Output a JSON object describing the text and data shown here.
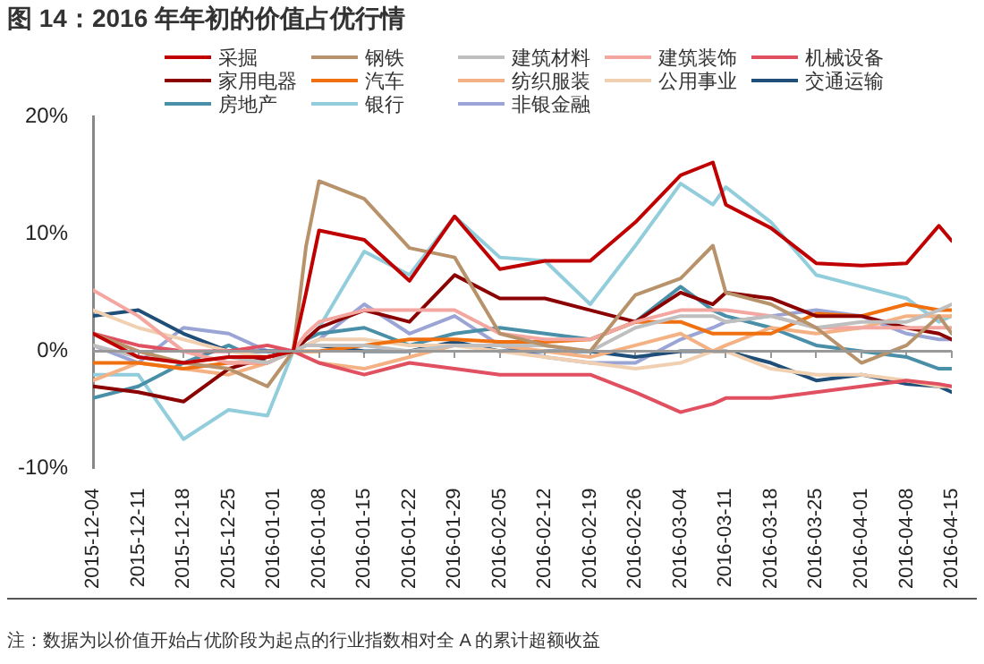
{
  "chart_data": {
    "type": "line",
    "title": "图 14：2016 年年初的价值占优行情",
    "annotations": [
      "注：数据为以价值开始占优阶段为起点的行业指数相对全 A 的累计超额收益"
    ],
    "x": [
      "2015-12-04",
      "2015-12-11",
      "2015-12-18",
      "2015-12-25",
      "2015-12-31",
      "2016-01-04",
      "2016-01-06",
      "2016-01-08",
      "2016-01-15",
      "2016-01-22",
      "2016-01-29",
      "2016-02-05",
      "2016-02-12",
      "2016-02-19",
      "2016-02-26",
      "2016-03-04",
      "2016-03-09",
      "2016-03-11",
      "2016-03-18",
      "2016-03-25",
      "2016-04-01",
      "2016-04-08",
      "2016-04-13",
      "2016-04-15"
    ],
    "xlim": [
      "2015-12-04",
      "2016-04-15"
    ],
    "xticks": [
      "2015-12-04",
      "2015-12-11",
      "2015-12-18",
      "2015-12-25",
      "2016-01-01",
      "2016-01-08",
      "2016-01-15",
      "2016-01-22",
      "2016-01-29",
      "2016-02-05",
      "2016-02-12",
      "2016-02-19",
      "2016-02-26",
      "2016-03-04",
      "2016-03-11",
      "2016-03-18",
      "2016-03-25",
      "2016-04-01",
      "2016-04-08",
      "2016-04-15"
    ],
    "ylim": [
      -10,
      20
    ],
    "yticks": [
      {
        "value": -10,
        "label": "-10%"
      },
      {
        "value": 0,
        "label": "0%"
      },
      {
        "value": 10,
        "label": "10%"
      },
      {
        "value": 20,
        "label": "20%"
      }
    ],
    "ref_lines": [
      {
        "axis": "y",
        "value": 0,
        "color": "#999999",
        "line_style": "solid"
      }
    ],
    "grid": false,
    "legend": "top",
    "marker": "none",
    "line_style": "solid",
    "series": [
      {
        "name": "采掘",
        "color": "#c00000",
        "values": [
          1.5,
          -0.5,
          -1,
          -0.5,
          -0.5,
          0,
          5,
          10.3,
          9.5,
          6,
          11.5,
          7,
          7.7,
          7.7,
          11,
          15,
          16.1,
          12.5,
          10.5,
          7.5,
          7.3,
          7.5,
          10.7,
          9.4
        ]
      },
      {
        "name": "钢铁",
        "color": "#b8926a",
        "values": [
          1.5,
          0,
          -1,
          -1.5,
          -3,
          0,
          9,
          14.5,
          13,
          8.8,
          8,
          1.5,
          0.5,
          0,
          4.8,
          6.2,
          9,
          5,
          4,
          2,
          -1,
          0.5,
          3,
          1.5
        ]
      },
      {
        "name": "建筑材料",
        "color": "#bfbfbf",
        "values": [
          0.5,
          -0.5,
          -1,
          -0.5,
          -1,
          0,
          0.5,
          0.5,
          0.5,
          0,
          0.5,
          0.5,
          0.5,
          0,
          2,
          3,
          3,
          2.5,
          3,
          2,
          2.5,
          2.5,
          3.5,
          4
        ]
      },
      {
        "name": "建筑装饰",
        "color": "#f4a6a0",
        "values": [
          5.2,
          3,
          0,
          -1,
          -1,
          0,
          1.5,
          2.5,
          3.5,
          3.5,
          3.5,
          1.5,
          1,
          1,
          2.5,
          3.5,
          3.5,
          3.5,
          3,
          2,
          2,
          2,
          2,
          2
        ]
      },
      {
        "name": "机械设备",
        "color": "#e05060",
        "values": [
          1.5,
          0.5,
          0,
          0,
          0.5,
          0,
          -0.5,
          -1,
          -2,
          -1,
          -1.5,
          -2,
          -2,
          -2,
          -3.5,
          -5.2,
          -4.5,
          -4,
          -4,
          -3.5,
          -3,
          -2.5,
          -2.8,
          -3
        ]
      },
      {
        "name": "家用电器",
        "color": "#8b0000",
        "values": [
          -3,
          -3.5,
          -4.3,
          -1.5,
          -0.5,
          0,
          1,
          2,
          3.5,
          2.5,
          6.5,
          4.5,
          4.5,
          3.5,
          2.5,
          5,
          4,
          5,
          4.5,
          3,
          3,
          2,
          1.5,
          1
        ]
      },
      {
        "name": "汽车",
        "color": "#f07010",
        "values": [
          -1,
          -1,
          -1.5,
          -1,
          -1,
          0,
          0,
          0,
          0.5,
          1,
          1,
          0.8,
          0.8,
          1,
          2.5,
          2.5,
          1.5,
          1.5,
          1.5,
          3.2,
          3,
          4,
          3.5,
          3.5
        ]
      },
      {
        "name": "纺织服装",
        "color": "#f4b183",
        "values": [
          -2.5,
          -1,
          -1.5,
          -2,
          -1,
          0,
          -0.5,
          -1,
          -1.5,
          -0.5,
          0.5,
          0.5,
          0,
          -0.5,
          0.5,
          1.5,
          0,
          0.5,
          2,
          1.5,
          2,
          3,
          3,
          3
        ]
      },
      {
        "name": "公用事业",
        "color": "#f0d0b0",
        "values": [
          3.5,
          2,
          1,
          0,
          -0.5,
          0,
          0.5,
          1,
          1,
          0.5,
          0.5,
          0,
          -0.5,
          -1,
          -1.5,
          -1,
          0,
          0,
          -1.5,
          -2,
          -2,
          -2.5,
          -3,
          -3
        ]
      },
      {
        "name": "交通运输",
        "color": "#1f4e79",
        "values": [
          3,
          3.5,
          1.5,
          0,
          0,
          0,
          0.5,
          0.5,
          0,
          0,
          0.8,
          0,
          0,
          0,
          -0.5,
          0,
          0,
          0,
          -1,
          -2.5,
          -2,
          -2.8,
          -3,
          -3.5
        ]
      },
      {
        "name": "房地产",
        "color": "#4a8fa8",
        "values": [
          -4,
          -3,
          -1,
          0.5,
          -1,
          0,
          1,
          1.5,
          2,
          0.5,
          1.5,
          2,
          1.5,
          1,
          2.5,
          5.5,
          3.5,
          3,
          2,
          0.5,
          0,
          -0.5,
          -1.5,
          -1.5
        ]
      },
      {
        "name": "银行",
        "color": "#92cddc",
        "values": [
          -2,
          -2,
          -7.5,
          -5,
          -5.5,
          0,
          1,
          2,
          8.5,
          6.5,
          11.5,
          8,
          7.7,
          4,
          9,
          14.3,
          12.5,
          14,
          11,
          6.5,
          5.5,
          4.5,
          2.5,
          3
        ]
      },
      {
        "name": "非银金融",
        "color": "#9aa5d6",
        "values": [
          0.5,
          -1,
          2,
          1.5,
          0,
          0,
          0.5,
          1,
          4,
          1.5,
          3,
          0.5,
          -0.5,
          -1,
          -1,
          1,
          2,
          2.5,
          3,
          3.5,
          3,
          1.5,
          1,
          1
        ]
      }
    ]
  }
}
